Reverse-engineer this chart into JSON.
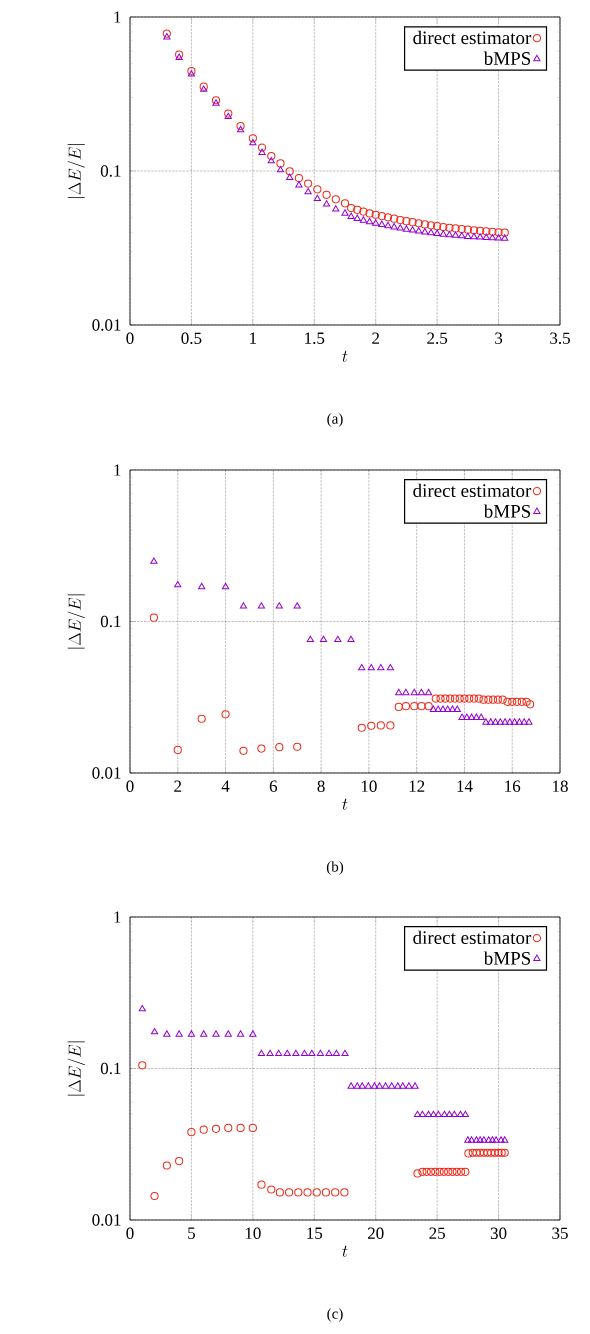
{
  "chart_data": [
    {
      "type": "scatter",
      "xlabel": "t",
      "ylabel": "|\\Delta E/E|",
      "log": "y",
      "grid": true,
      "legend": "top right",
      "xlim": [
        0,
        3.5
      ],
      "xticks": [
        0,
        0.5,
        1,
        1.5,
        2,
        2.5,
        3,
        3.5
      ],
      "ylim": [
        0.01,
        1
      ],
      "yticks": [
        0.01,
        0.1,
        1
      ],
      "annotations": [
        "(a)"
      ],
      "series": [
        {
          "name": "direct estimator",
          "color": "#f02818",
          "marker": "circle",
          "x": [
            0.3,
            0.4,
            0.5,
            0.6,
            0.7,
            0.8,
            0.9,
            1.0,
            1.075,
            1.15,
            1.225,
            1.3,
            1.375,
            1.45,
            1.525,
            1.6,
            1.675,
            1.75,
            1.8,
            1.85,
            1.9,
            1.95,
            2.0,
            2.05,
            2.1,
            2.15,
            2.2,
            2.25,
            2.3,
            2.35,
            2.4,
            2.45,
            2.5,
            2.55,
            2.6,
            2.65,
            2.7,
            2.75,
            2.8,
            2.85,
            2.9,
            2.95,
            3.0,
            3.05
          ],
          "values": [
            0.78,
            0.57,
            0.445,
            0.353,
            0.288,
            0.236,
            0.196,
            0.163,
            0.142,
            0.125,
            0.112,
            0.0995,
            0.09,
            0.0828,
            0.076,
            0.07,
            0.0655,
            0.0617,
            0.0575,
            0.056,
            0.0545,
            0.053,
            0.052,
            0.051,
            0.05,
            0.049,
            0.048,
            0.0472,
            0.0465,
            0.0458,
            0.045,
            0.0444,
            0.0438,
            0.0433,
            0.0428,
            0.0424,
            0.042,
            0.0416,
            0.0412,
            0.0409,
            0.0406,
            0.0403,
            0.04,
            0.0398
          ]
        },
        {
          "name": "bMPS",
          "color": "#9400d3",
          "marker": "triangle",
          "x": [
            0.3,
            0.4,
            0.5,
            0.6,
            0.7,
            0.8,
            0.9,
            1.0,
            1.075,
            1.15,
            1.225,
            1.3,
            1.375,
            1.45,
            1.525,
            1.6,
            1.675,
            1.75,
            1.8,
            1.85,
            1.9,
            1.95,
            2.0,
            2.05,
            2.1,
            2.15,
            2.2,
            2.25,
            2.3,
            2.35,
            2.4,
            2.45,
            2.5,
            2.55,
            2.6,
            2.65,
            2.7,
            2.75,
            2.8,
            2.85,
            2.9,
            2.95,
            3.0,
            3.05
          ],
          "values": [
            0.74,
            0.545,
            0.425,
            0.338,
            0.275,
            0.225,
            0.185,
            0.152,
            0.1315,
            0.116,
            0.1015,
            0.0906,
            0.081,
            0.073,
            0.066,
            0.0608,
            0.0564,
            0.053,
            0.0505,
            0.049,
            0.0478,
            0.0467,
            0.0457,
            0.0448,
            0.044,
            0.0432,
            0.0425,
            0.0418,
            0.0412,
            0.0406,
            0.0401,
            0.0396,
            0.0392,
            0.0388,
            0.0384,
            0.0381,
            0.0378,
            0.0375,
            0.0373,
            0.0371,
            0.0369,
            0.0367,
            0.0366,
            0.0365
          ]
        }
      ]
    },
    {
      "type": "scatter",
      "xlabel": "t",
      "ylabel": "|\\Delta E/E|",
      "log": "y",
      "grid": true,
      "legend": "top right",
      "xlim": [
        0,
        18
      ],
      "xticks": [
        0,
        2,
        4,
        6,
        8,
        10,
        12,
        14,
        16,
        18
      ],
      "ylim": [
        0.01,
        1
      ],
      "yticks": [
        0.01,
        0.1,
        1
      ],
      "annotations": [
        "(b)"
      ],
      "series": [
        {
          "name": "direct estimator",
          "color": "#f02818",
          "marker": "circle",
          "x": [
            1,
            2,
            3,
            4,
            4.75,
            5.5,
            6.25,
            7,
            9.7,
            10.1,
            10.5,
            10.9,
            11.25,
            11.55,
            11.9,
            12.2,
            12.5,
            12.8,
            13.0,
            13.2,
            13.4,
            13.6,
            13.8,
            14.0,
            14.2,
            14.4,
            14.6,
            14.8,
            15.0,
            15.2,
            15.4,
            15.6,
            15.8,
            16.0,
            16.2,
            16.4,
            16.6,
            16.75
          ],
          "values": [
            0.106,
            0.0142,
            0.0228,
            0.0244,
            0.014,
            0.0145,
            0.0148,
            0.0149,
            0.0199,
            0.0205,
            0.0206,
            0.0206,
            0.0273,
            0.0276,
            0.0276,
            0.0276,
            0.0276,
            0.031,
            0.031,
            0.031,
            0.031,
            0.031,
            0.031,
            0.031,
            0.031,
            0.031,
            0.031,
            0.0305,
            0.0305,
            0.0305,
            0.0305,
            0.0305,
            0.0295,
            0.0295,
            0.0295,
            0.0295,
            0.0295,
            0.0284
          ]
        },
        {
          "name": "bMPS",
          "color": "#9400d3",
          "marker": "triangle",
          "x": [
            1,
            2,
            3,
            4,
            4.75,
            5.5,
            6.25,
            7,
            7.55,
            8.1,
            8.7,
            9.25,
            9.7,
            10.1,
            10.5,
            10.9,
            11.25,
            11.55,
            11.9,
            12.2,
            12.5,
            12.7,
            12.9,
            13.1,
            13.3,
            13.5,
            13.7,
            13.9,
            14.1,
            14.3,
            14.5,
            14.7,
            14.9,
            15.1,
            15.3,
            15.5,
            15.7,
            15.9,
            16.1,
            16.3,
            16.5,
            16.7
          ],
          "values": [
            0.249,
            0.174,
            0.169,
            0.169,
            0.126,
            0.126,
            0.126,
            0.126,
            0.0757,
            0.0757,
            0.0757,
            0.0757,
            0.0493,
            0.0493,
            0.0493,
            0.0493,
            0.0338,
            0.0338,
            0.0338,
            0.0338,
            0.0338,
            0.0262,
            0.0262,
            0.0262,
            0.0262,
            0.0262,
            0.0262,
            0.0232,
            0.0232,
            0.0232,
            0.0232,
            0.0232,
            0.0216,
            0.0216,
            0.0216,
            0.0216,
            0.0216,
            0.0216,
            0.0216,
            0.0216,
            0.0216,
            0.0216
          ]
        }
      ]
    },
    {
      "type": "scatter",
      "xlabel": "t",
      "ylabel": "|\\Delta E/E|",
      "log": "y",
      "grid": true,
      "legend": "top right",
      "xlim": [
        0,
        35
      ],
      "xticks": [
        0,
        5,
        10,
        15,
        20,
        25,
        30,
        35
      ],
      "ylim": [
        0.01,
        1
      ],
      "yticks": [
        0.01,
        0.1,
        1
      ],
      "annotations": [
        "(c)"
      ],
      "series": [
        {
          "name": "direct estimator",
          "color": "#f02818",
          "marker": "circle",
          "x": [
            1,
            2,
            3,
            4,
            5,
            6,
            7,
            8,
            9,
            10,
            10.7,
            11.5,
            12.2,
            12.95,
            13.7,
            14.45,
            15.2,
            15.95,
            16.7,
            17.45,
            23.4,
            23.8,
            24.15,
            24.5,
            24.85,
            25.2,
            25.55,
            25.9,
            26.25,
            26.6,
            26.95,
            27.3,
            27.55,
            27.9,
            28.2,
            28.5,
            28.8,
            29.1,
            29.4,
            29.7,
            30.0,
            30.25,
            30.5
          ],
          "values": [
            0.105,
            0.0144,
            0.0229,
            0.0245,
            0.038,
            0.0395,
            0.04,
            0.0405,
            0.0405,
            0.0405,
            0.0171,
            0.0159,
            0.0152,
            0.0152,
            0.0152,
            0.0152,
            0.0152,
            0.0152,
            0.0152,
            0.0152,
            0.0203,
            0.0208,
            0.0208,
            0.0208,
            0.0208,
            0.0208,
            0.0208,
            0.0208,
            0.0208,
            0.0208,
            0.0208,
            0.0208,
            0.0275,
            0.0278,
            0.0278,
            0.0278,
            0.0278,
            0.0278,
            0.0278,
            0.0278,
            0.0278,
            0.0278,
            0.0278
          ]
        },
        {
          "name": "bMPS",
          "color": "#9400d3",
          "marker": "triangle",
          "x": [
            1,
            2,
            3,
            4,
            5,
            6,
            7,
            8,
            9,
            10,
            10.7,
            11.4,
            12.1,
            12.8,
            13.5,
            14.2,
            14.8,
            15.5,
            16.2,
            16.8,
            17.5,
            18.0,
            18.5,
            18.9,
            19.4,
            19.9,
            20.3,
            20.8,
            21.3,
            21.8,
            22.2,
            22.7,
            23.2,
            23.4,
            23.8,
            24.3,
            24.7,
            25.1,
            25.6,
            26.0,
            26.4,
            26.9,
            27.3,
            27.5,
            27.8,
            28.2,
            28.5,
            28.8,
            29.2,
            29.5,
            29.8,
            30.2,
            30.5
          ],
          "values": [
            0.247,
            0.174,
            0.168,
            0.168,
            0.168,
            0.168,
            0.168,
            0.168,
            0.168,
            0.168,
            0.125,
            0.125,
            0.125,
            0.125,
            0.125,
            0.125,
            0.125,
            0.125,
            0.125,
            0.125,
            0.125,
            0.0762,
            0.0762,
            0.0762,
            0.0762,
            0.0762,
            0.0762,
            0.0762,
            0.0762,
            0.0762,
            0.0762,
            0.0762,
            0.0762,
            0.0495,
            0.0495,
            0.0495,
            0.0495,
            0.0495,
            0.0495,
            0.0495,
            0.0495,
            0.0495,
            0.0495,
            0.0335,
            0.0335,
            0.0335,
            0.0335,
            0.0335,
            0.0335,
            0.0335,
            0.0335,
            0.0335,
            0.0335
          ]
        }
      ]
    }
  ]
}
